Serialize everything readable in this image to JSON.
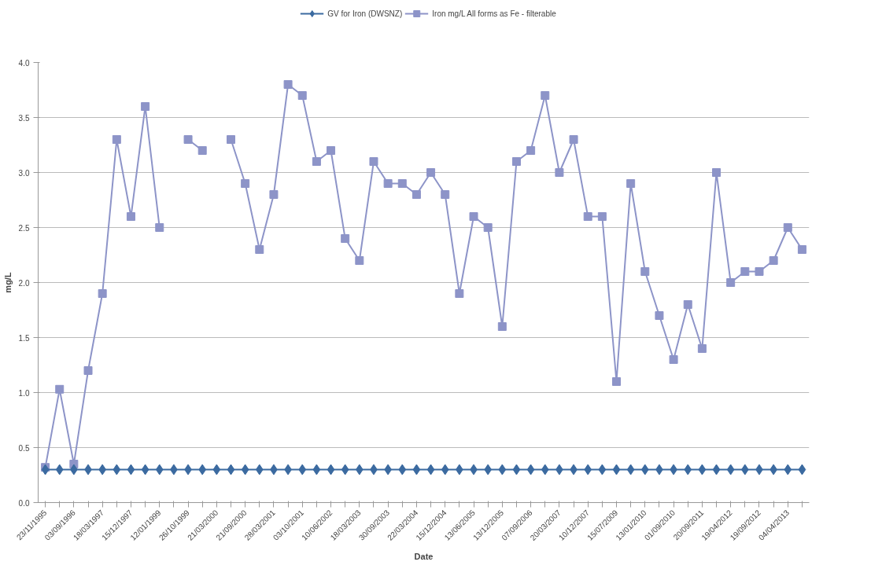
{
  "chart_data": {
    "type": "line",
    "xlabel": "Date",
    "ylabel": "mg/L",
    "categories": [
      "23/11/1995",
      null,
      "03/09/1996",
      null,
      "18/03/1997",
      null,
      "15/12/1997",
      null,
      "12/01/1999",
      null,
      "26/10/1999",
      null,
      "21/03/2000",
      null,
      "21/09/2000",
      null,
      "28/03/2001",
      null,
      "03/10/2001",
      null,
      "10/06/2002",
      null,
      "18/03/2003",
      null,
      "30/09/2003",
      null,
      "22/03/2004",
      null,
      "15/12/2004",
      null,
      "13/06/2005",
      null,
      "13/12/2005",
      null,
      "07/09/2006",
      null,
      "20/03/2007",
      null,
      "10/12/2007",
      null,
      "15/07/2009",
      null,
      "13/01/2010",
      null,
      "01/09/2010",
      null,
      "20/09/2011",
      null,
      "19/04/2012",
      null,
      "19/09/2012",
      null,
      "04/04/2013",
      null
    ],
    "series": [
      {
        "name": "GV for Iron (DWSNZ)",
        "color": "#3b6aa0",
        "marker": "diamond",
        "values": [
          0.3,
          0.3,
          0.3,
          0.3,
          0.3,
          0.3,
          0.3,
          0.3,
          0.3,
          0.3,
          0.3,
          0.3,
          0.3,
          0.3,
          0.3,
          0.3,
          0.3,
          0.3,
          0.3,
          0.3,
          0.3,
          0.3,
          0.3,
          0.3,
          0.3,
          0.3,
          0.3,
          0.3,
          0.3,
          0.3,
          0.3,
          0.3,
          0.3,
          0.3,
          0.3,
          0.3,
          0.3,
          0.3,
          0.3,
          0.3,
          0.3,
          0.3,
          0.3,
          0.3,
          0.3,
          0.3,
          0.3,
          0.3,
          0.3,
          0.3,
          0.3,
          0.3,
          0.3,
          0.3
        ]
      },
      {
        "name": "Iron mg/L All forms as Fe - filterable",
        "color": "#8d94c8",
        "marker": "square",
        "values": [
          0.32,
          1.03,
          0.35,
          1.2,
          1.9,
          3.3,
          2.6,
          3.6,
          2.5,
          null,
          3.3,
          3.2,
          null,
          3.3,
          2.9,
          2.3,
          2.8,
          3.8,
          3.7,
          3.1,
          3.2,
          2.4,
          2.2,
          3.1,
          2.9,
          2.9,
          2.8,
          3.0,
          2.8,
          1.9,
          2.6,
          2.5,
          1.6,
          3.1,
          3.2,
          3.7,
          3.0,
          3.3,
          2.6,
          2.6,
          1.1,
          2.9,
          2.1,
          1.7,
          1.3,
          1.8,
          1.4,
          3.0,
          2.0,
          2.1,
          2.1,
          2.2,
          2.5,
          2.3
        ]
      }
    ],
    "ylim": [
      0,
      4
    ],
    "yticks": [
      {
        "value": 0,
        "label": "0.0"
      },
      {
        "value": 0.5,
        "label": "0.5"
      },
      {
        "value": 1,
        "label": "1.0"
      },
      {
        "value": 1.5,
        "label": "1.5"
      },
      {
        "value": 2,
        "label": "2.0"
      },
      {
        "value": 2.5,
        "label": "2.5"
      },
      {
        "value": 3,
        "label": "3.0"
      },
      {
        "value": 3.5,
        "label": "3.5"
      },
      {
        "value": 4,
        "label": "4.0"
      }
    ],
    "grid": "y",
    "legend": "top"
  }
}
